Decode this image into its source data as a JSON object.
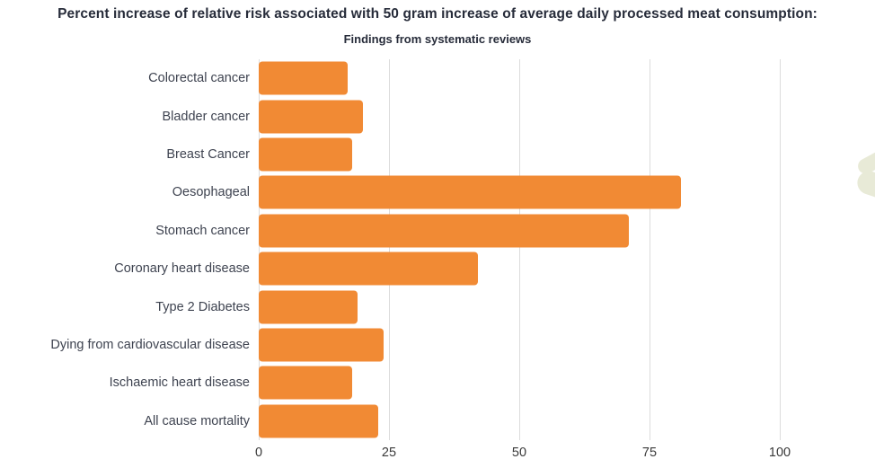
{
  "chart_data": {
    "type": "bar",
    "orientation": "horizontal",
    "title": "Percent increase of relative risk associated with 50 gram increase of average daily processed meat consumption:",
    "subtitle": "Findings from systematic reviews",
    "categories": [
      "Colorectal cancer",
      "Bladder cancer",
      "Breast Cancer",
      "Oesophageal",
      "Stomach cancer",
      "Coronary heart disease",
      "Type 2 Diabetes",
      "Dying from cardiovascular disease",
      "Ischaemic heart disease",
      "All cause mortality"
    ],
    "values": [
      17,
      20,
      18,
      81,
      71,
      42,
      19,
      24,
      18,
      23
    ],
    "x_ticks": [
      0,
      25,
      50,
      75,
      100
    ],
    "xlim": [
      0,
      115
    ],
    "grid": true,
    "legend": "none",
    "colors": {
      "bar": "#F18A34",
      "gridline": "#dcdcdc",
      "title_text": "#272c3a",
      "label_text": "#3e4350",
      "tick_text": "#3a3a3a",
      "watermark": "#e8ead7",
      "background": "#ffffff"
    }
  }
}
